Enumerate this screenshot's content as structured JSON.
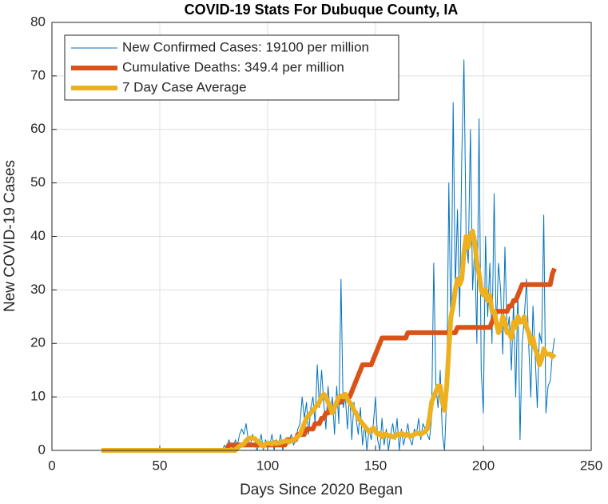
{
  "chart_data": {
    "type": "line",
    "title": "COVID-19 Stats For Dubuque County, IA",
    "x_label": "Days Since 2020 Began",
    "y_label": "New COVID-19 Cases",
    "xlim": [
      0,
      250
    ],
    "xticks": [
      0,
      50,
      100,
      150,
      200,
      250
    ],
    "ylim": [
      0,
      80
    ],
    "yticks": [
      0,
      10,
      20,
      30,
      40,
      50,
      60,
      70,
      80
    ],
    "grid": true,
    "legend": "upper-left",
    "x": [
      23,
      24,
      25,
      26,
      27,
      28,
      29,
      30,
      31,
      32,
      33,
      34,
      35,
      36,
      37,
      38,
      39,
      40,
      41,
      42,
      43,
      44,
      45,
      46,
      47,
      48,
      49,
      50,
      51,
      52,
      53,
      54,
      55,
      56,
      57,
      58,
      59,
      60,
      61,
      62,
      63,
      64,
      65,
      66,
      67,
      68,
      69,
      70,
      71,
      72,
      73,
      74,
      75,
      76,
      77,
      78,
      79,
      80,
      81,
      82,
      83,
      84,
      85,
      86,
      87,
      88,
      89,
      90,
      91,
      92,
      93,
      94,
      95,
      96,
      97,
      98,
      99,
      100,
      101,
      102,
      103,
      104,
      105,
      106,
      107,
      108,
      109,
      110,
      111,
      112,
      113,
      114,
      115,
      116,
      117,
      118,
      119,
      120,
      121,
      122,
      123,
      124,
      125,
      126,
      127,
      128,
      129,
      130,
      131,
      132,
      133,
      134,
      135,
      136,
      137,
      138,
      139,
      140,
      141,
      142,
      143,
      144,
      145,
      146,
      147,
      148,
      149,
      150,
      151,
      152,
      153,
      154,
      155,
      156,
      157,
      158,
      159,
      160,
      161,
      162,
      163,
      164,
      165,
      166,
      167,
      168,
      169,
      170,
      171,
      172,
      173,
      174,
      175,
      176,
      177,
      178,
      179,
      180,
      181,
      182,
      183,
      184,
      185,
      186,
      187,
      188,
      189,
      190,
      191,
      192,
      193,
      194,
      195,
      196,
      197,
      198,
      199,
      200,
      201,
      202,
      203,
      204,
      205,
      206,
      207,
      208,
      209,
      210,
      211,
      212,
      213,
      214,
      215,
      216,
      217,
      218,
      219,
      220,
      221,
      222,
      223,
      224,
      225,
      226,
      227,
      228,
      229,
      230,
      231,
      232,
      233
    ],
    "series": [
      {
        "name": "New Confirmed Cases: 19100 per million",
        "color": "#0072bd",
        "values": [
          0,
          0,
          0,
          0,
          0,
          0,
          0,
          0,
          0,
          0,
          0,
          0,
          0,
          0,
          0,
          0,
          0,
          0,
          0,
          0,
          0,
          0,
          0,
          0,
          0,
          0,
          0,
          0,
          0,
          0,
          0,
          0,
          0,
          0,
          0,
          0,
          0,
          0,
          0,
          0,
          0,
          0,
          0,
          0,
          0,
          0,
          0,
          0,
          0,
          0,
          0,
          0,
          0,
          0,
          0,
          0,
          0,
          1,
          0,
          2,
          1,
          0,
          2,
          1,
          3,
          4,
          3,
          5,
          2,
          1,
          3,
          2,
          0,
          1,
          3,
          0,
          2,
          1,
          1,
          3,
          0,
          2,
          1,
          3,
          0,
          2,
          1,
          2,
          3,
          1,
          2,
          4,
          5,
          10,
          6,
          9,
          3,
          8,
          10,
          5,
          16,
          8,
          15,
          9,
          4,
          12,
          7,
          10,
          3,
          12,
          5,
          32,
          8,
          10,
          4,
          11,
          2,
          9,
          6,
          3,
          8,
          1,
          5,
          0,
          4,
          2,
          5,
          10,
          2,
          0,
          6,
          1,
          4,
          0,
          3,
          5,
          2,
          6,
          0,
          4,
          1,
          3,
          5,
          2,
          1,
          4,
          3,
          6,
          2,
          5,
          4,
          3,
          2,
          6,
          35,
          12,
          8,
          15,
          3,
          0,
          10,
          50,
          20,
          65,
          30,
          45,
          25,
          55,
          73,
          40,
          35,
          60,
          30,
          38,
          20,
          62,
          15,
          7,
          40,
          25,
          35,
          20,
          48,
          22,
          35,
          30,
          18,
          38,
          22,
          25,
          15,
          28,
          10,
          30,
          2,
          20,
          25,
          32,
          20,
          10,
          27,
          18,
          8,
          22,
          20,
          44,
          7,
          12,
          13,
          18,
          21
        ]
      },
      {
        "name": "Cumulative Deaths: 349.4 per million",
        "color": "#d95319",
        "values": [
          0,
          0,
          0,
          0,
          0,
          0,
          0,
          0,
          0,
          0,
          0,
          0,
          0,
          0,
          0,
          0,
          0,
          0,
          0,
          0,
          0,
          0,
          0,
          0,
          0,
          0,
          0,
          0,
          0,
          0,
          0,
          0,
          0,
          0,
          0,
          0,
          0,
          0,
          0,
          0,
          0,
          0,
          0,
          0,
          0,
          0,
          0,
          0,
          0,
          0,
          0,
          0,
          0,
          0,
          0,
          0,
          0,
          0,
          0,
          1,
          1,
          1,
          1,
          1,
          1,
          1,
          1,
          1,
          1,
          1,
          1,
          1,
          1,
          1,
          1,
          1,
          1,
          1,
          1,
          1,
          1,
          1,
          1,
          1,
          1,
          1,
          2,
          2,
          2,
          2,
          2,
          3,
          3,
          3,
          3,
          4,
          4,
          4,
          4,
          5,
          5,
          5,
          6,
          6,
          7,
          7,
          8,
          8,
          8,
          9,
          9,
          9,
          10,
          10,
          10,
          10,
          11,
          12,
          13,
          14,
          15,
          16,
          16,
          16,
          16,
          16,
          17,
          18,
          19,
          20,
          21,
          21,
          21,
          21,
          21,
          21,
          21,
          21,
          21,
          21,
          21,
          21,
          22,
          22,
          22,
          22,
          22,
          22,
          22,
          22,
          22,
          22,
          22,
          22,
          22,
          22,
          22,
          22,
          22,
          22,
          22,
          22,
          22,
          22,
          22,
          23,
          23,
          23,
          23,
          23,
          23,
          23,
          23,
          23,
          23,
          23,
          23,
          23,
          23,
          23,
          23,
          24,
          25,
          26,
          26,
          26,
          26,
          26,
          26,
          27,
          27,
          28,
          28,
          29,
          30,
          31,
          31,
          31,
          31,
          31,
          31,
          31,
          31,
          31,
          31,
          31,
          31,
          31,
          31,
          33,
          34
        ]
      },
      {
        "name": "7 Day Case Average",
        "color": "#edb120",
        "values": [
          0,
          0,
          0,
          0,
          0,
          0,
          0,
          0,
          0,
          0,
          0,
          0,
          0,
          0,
          0,
          0,
          0,
          0,
          0,
          0,
          0,
          0,
          0,
          0,
          0,
          0,
          0,
          0,
          0,
          0,
          0,
          0,
          0,
          0,
          0,
          0,
          0,
          0,
          0,
          0,
          0,
          0,
          0,
          0,
          0,
          0,
          0,
          0,
          0,
          0,
          0,
          0,
          0,
          0,
          0,
          0,
          0,
          0,
          0,
          0,
          0,
          0,
          0,
          0.5,
          0.8,
          1,
          1.2,
          1.8,
          2.2,
          2.3,
          2.3,
          2.2,
          1.8,
          1.5,
          1,
          0.8,
          1.2,
          1.4,
          1.3,
          1.2,
          1.5,
          1.3,
          1.4,
          1.5,
          1.6,
          1.7,
          1.8,
          1.6,
          1.8,
          2,
          2.2,
          2.6,
          3,
          4,
          5,
          6,
          6.5,
          7,
          7.5,
          8,
          8.5,
          9,
          10,
          10.5,
          10,
          9,
          8,
          7,
          8,
          9,
          10,
          10.2,
          10,
          10.5,
          9.5,
          9,
          8.5,
          7.5,
          7,
          6,
          5.5,
          5,
          4.5,
          4,
          3.5,
          3.8,
          4.2,
          3.5,
          3,
          3.2,
          2.5,
          3,
          3,
          2.7,
          2.8,
          2.5,
          2.6,
          3,
          2.8,
          3.2,
          3,
          2.8,
          3,
          2.6,
          2.8,
          3,
          3.2,
          3.2,
          3,
          3.3,
          3.5,
          4,
          6,
          9,
          10,
          11,
          12,
          12,
          9,
          7.5,
          12,
          19,
          25,
          27,
          30,
          32,
          31,
          32,
          37,
          40,
          38,
          40,
          41,
          39,
          35,
          33,
          30,
          29,
          30,
          28,
          29,
          26,
          26,
          24,
          22,
          23,
          25,
          24,
          22,
          22,
          21,
          24,
          23,
          25,
          24,
          24,
          25,
          23,
          22,
          20,
          21,
          19,
          18,
          16,
          17,
          19,
          18,
          18,
          18,
          17.5,
          18
        ]
      }
    ]
  }
}
